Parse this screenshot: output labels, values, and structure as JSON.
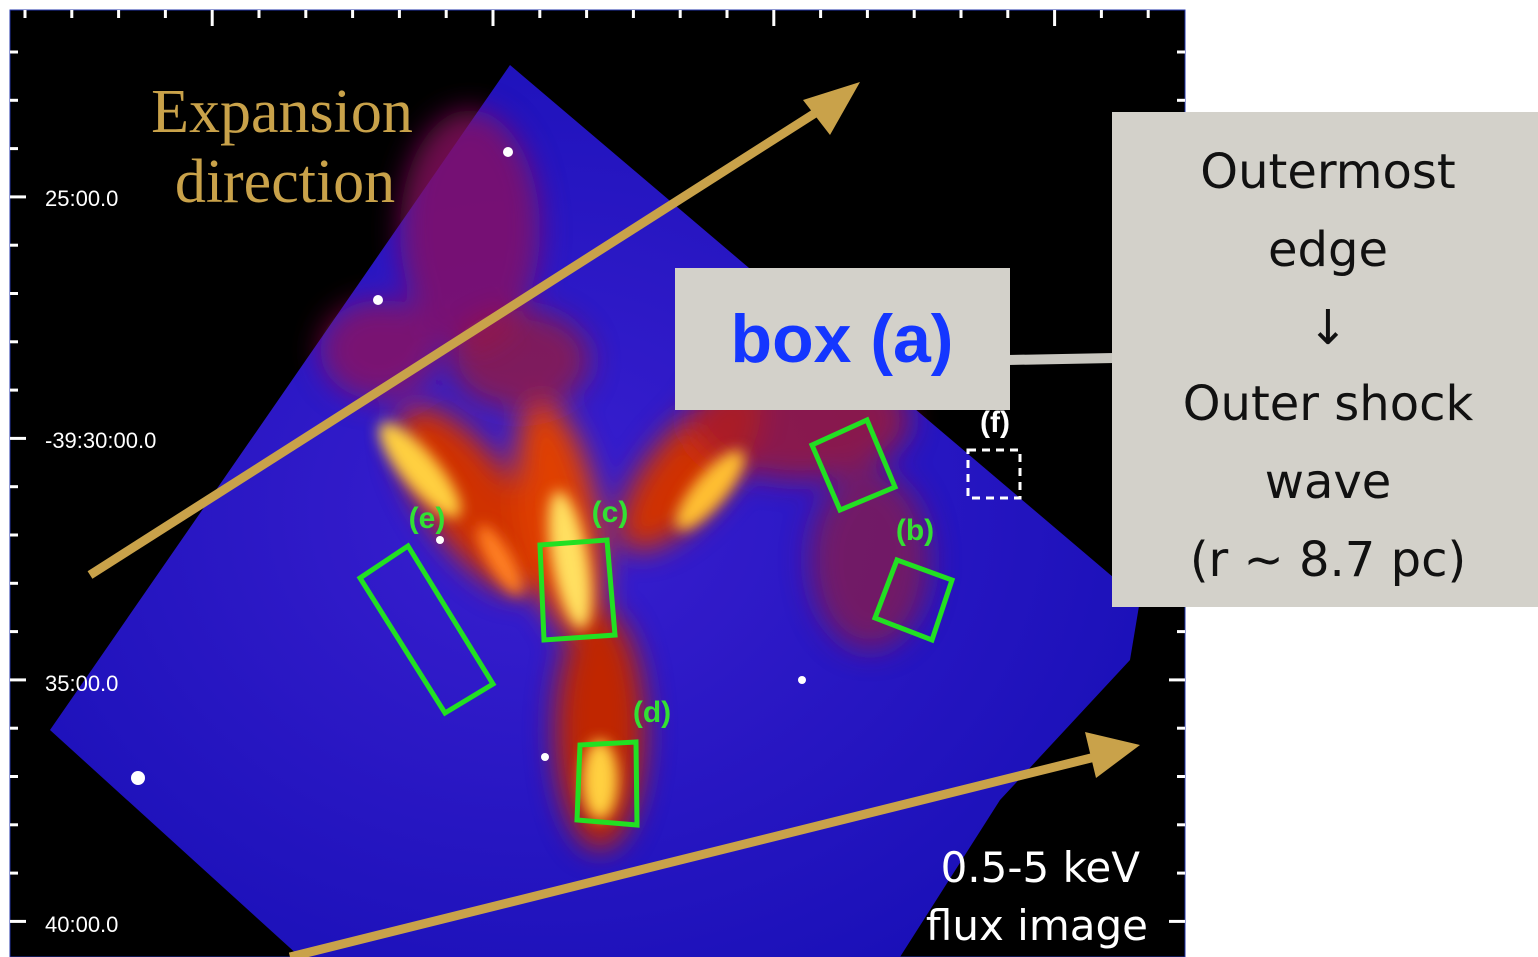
{
  "axis": {
    "y_labels": [
      "25:00.0",
      "-39:30:00.0",
      "35:00.0",
      "40:00.0"
    ]
  },
  "annotation": {
    "expansion": [
      "Expansion",
      "direction"
    ],
    "box_a": "box (a)",
    "callout": [
      "Outermost",
      "edge",
      "↓",
      "Outer shock",
      "wave",
      "(r ~ 8.7 pc)"
    ],
    "energy": [
      "0.5-5 keV",
      "flux image"
    ]
  },
  "regions": {
    "b": "(b)",
    "c": "(c)",
    "d": "(d)",
    "e": "(e)",
    "f": "(f)"
  }
}
